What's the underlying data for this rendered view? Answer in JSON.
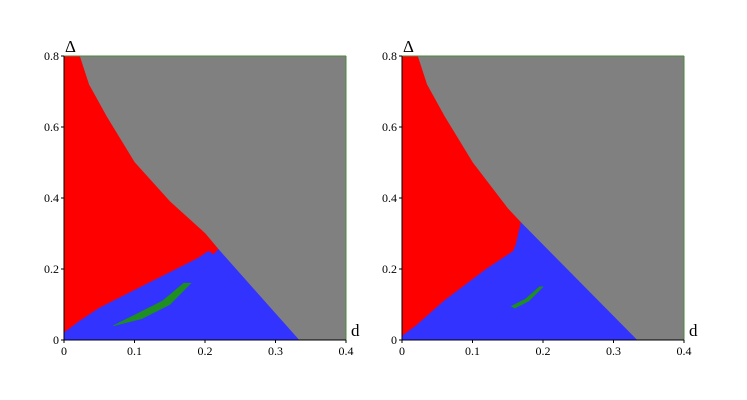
{
  "chart_data": [
    {
      "type": "area",
      "xlabel": "d",
      "ylabel": "Δ",
      "xlim": [
        0,
        0.4
      ],
      "ylim": [
        0,
        0.8
      ],
      "xticks": [
        "0",
        "0.1",
        "0.2",
        "0.3",
        "0.4"
      ],
      "yticks": [
        "0",
        "0.2",
        "0.4",
        "0.6",
        "0.8"
      ],
      "colors": {
        "gray": "#808080",
        "red": "#ff0000",
        "blue": "#3333ff",
        "green": "#1f8f1f",
        "frame": "#4a8a3a"
      },
      "regions": [
        {
          "color": "gray",
          "points": [
            [
              0.0,
              0.8
            ],
            [
              0.4,
              0.8
            ],
            [
              0.4,
              0.0
            ],
            [
              0.333,
              0.0
            ],
            [
              0.219,
              0.255
            ],
            [
              0.215,
              0.26
            ],
            [
              0.2,
              0.3
            ],
            [
              0.15,
              0.39
            ],
            [
              0.1,
              0.5
            ],
            [
              0.06,
              0.63
            ],
            [
              0.035,
              0.72
            ],
            [
              0.0,
              0.8
            ]
          ]
        },
        {
          "color": "red",
          "points": [
            [
              0.0,
              0.8
            ],
            [
              0.022,
              0.8
            ],
            [
              0.035,
              0.72
            ],
            [
              0.06,
              0.63
            ],
            [
              0.1,
              0.5
            ],
            [
              0.15,
              0.39
            ],
            [
              0.2,
              0.3
            ],
            [
              0.219,
              0.255
            ],
            [
              0.212,
              0.24
            ],
            [
              0.205,
              0.25
            ],
            [
              0.19,
              0.23
            ],
            [
              0.16,
              0.2
            ],
            [
              0.12,
              0.16
            ],
            [
              0.08,
              0.12
            ],
            [
              0.05,
              0.09
            ],
            [
              0.02,
              0.05
            ],
            [
              0.0,
              0.02
            ]
          ]
        },
        {
          "color": "blue",
          "points": [
            [
              0.0,
              0.0
            ],
            [
              0.333,
              0.0
            ],
            [
              0.219,
              0.255
            ],
            [
              0.212,
              0.24
            ],
            [
              0.205,
              0.25
            ],
            [
              0.19,
              0.23
            ],
            [
              0.16,
              0.2
            ],
            [
              0.12,
              0.16
            ],
            [
              0.08,
              0.12
            ],
            [
              0.05,
              0.09
            ],
            [
              0.02,
              0.05
            ],
            [
              0.0,
              0.02
            ]
          ]
        },
        {
          "color": "green",
          "points": [
            [
              0.07,
              0.04
            ],
            [
              0.11,
              0.06
            ],
            [
              0.15,
              0.1
            ],
            [
              0.18,
              0.16
            ],
            [
              0.17,
              0.16
            ],
            [
              0.14,
              0.11
            ],
            [
              0.1,
              0.07
            ]
          ]
        }
      ]
    },
    {
      "type": "area",
      "xlabel": "d",
      "ylabel": "Δ",
      "xlim": [
        0,
        0.4
      ],
      "ylim": [
        0,
        0.8
      ],
      "xticks": [
        "0",
        "0.1",
        "0.2",
        "0.3",
        "0.4"
      ],
      "yticks": [
        "0",
        "0.2",
        "0.4",
        "0.6",
        "0.8"
      ],
      "colors": {
        "gray": "#808080",
        "red": "#ff0000",
        "blue": "#3333ff",
        "green": "#1f8f1f",
        "frame": "#4a8a3a"
      },
      "regions": [
        {
          "color": "gray",
          "points": [
            [
              0.0,
              0.8
            ],
            [
              0.4,
              0.8
            ],
            [
              0.4,
              0.0
            ],
            [
              0.333,
              0.0
            ],
            [
              0.169,
              0.33
            ],
            [
              0.15,
              0.37
            ],
            [
              0.1,
              0.5
            ],
            [
              0.06,
              0.63
            ],
            [
              0.035,
              0.72
            ],
            [
              0.0,
              0.8
            ]
          ]
        },
        {
          "color": "red",
          "points": [
            [
              0.0,
              0.8
            ],
            [
              0.022,
              0.8
            ],
            [
              0.035,
              0.72
            ],
            [
              0.06,
              0.63
            ],
            [
              0.1,
              0.5
            ],
            [
              0.15,
              0.37
            ],
            [
              0.169,
              0.33
            ],
            [
              0.162,
              0.27
            ],
            [
              0.158,
              0.25
            ],
            [
              0.12,
              0.2
            ],
            [
              0.06,
              0.11
            ],
            [
              0.02,
              0.04
            ],
            [
              0.0,
              0.01
            ]
          ]
        },
        {
          "color": "blue",
          "points": [
            [
              0.0,
              0.0
            ],
            [
              0.333,
              0.0
            ],
            [
              0.169,
              0.33
            ],
            [
              0.162,
              0.27
            ],
            [
              0.158,
              0.25
            ],
            [
              0.12,
              0.2
            ],
            [
              0.06,
              0.11
            ],
            [
              0.02,
              0.04
            ],
            [
              0.0,
              0.01
            ]
          ]
        },
        {
          "color": "green",
          "points": [
            [
              0.16,
              0.09
            ],
            [
              0.18,
              0.11
            ],
            [
              0.2,
              0.15
            ],
            [
              0.195,
              0.15
            ],
            [
              0.175,
              0.115
            ],
            [
              0.155,
              0.095
            ]
          ]
        }
      ]
    }
  ]
}
